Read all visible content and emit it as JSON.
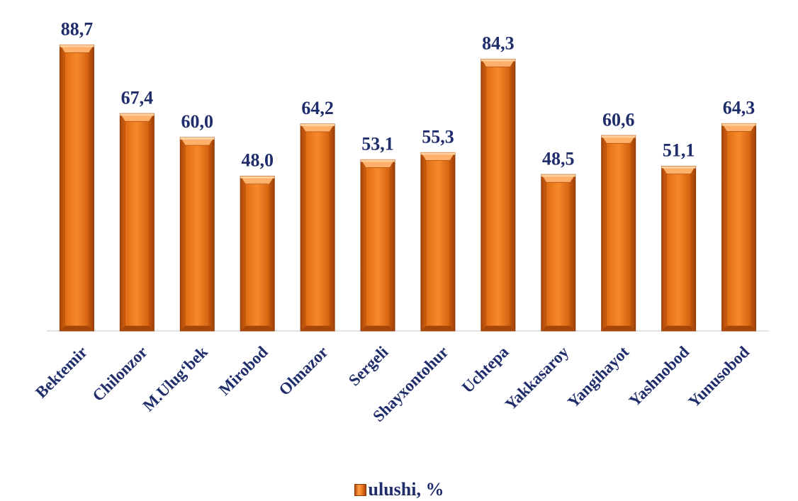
{
  "chart_data": {
    "type": "bar",
    "categories": [
      "Bektemir",
      "Chilonzor",
      "M.Ulug‘bek",
      "Mirobod",
      "Olmazor",
      "Sergeli",
      "Shayxontohur",
      "Uchtepa",
      "Yakkasaroy",
      "Yangihayot",
      "Yashnobod",
      "Yunusobod"
    ],
    "series": [
      {
        "name": "ulushi, %",
        "values": [
          88.7,
          67.4,
          60.0,
          48.0,
          64.2,
          53.1,
          55.3,
          84.3,
          48.5,
          60.6,
          51.1,
          64.3
        ],
        "labels": [
          "88,7",
          "67,4",
          "60,0",
          "48,0",
          "64,2",
          "53,1",
          "55,3",
          "84,3",
          "48,5",
          "60,6",
          "51,1",
          "64,3"
        ]
      }
    ],
    "ylim": [
      0,
      100
    ],
    "grid": false,
    "legend_position": "bottom",
    "colors": {
      "bar": "#f07a1c",
      "bar_dark": "#b84e0c",
      "bar_light": "#ffb06a",
      "text": "#1f2d6b",
      "axis": "#d9d9d9"
    }
  },
  "legend": {
    "label": "ulushi, %"
  }
}
